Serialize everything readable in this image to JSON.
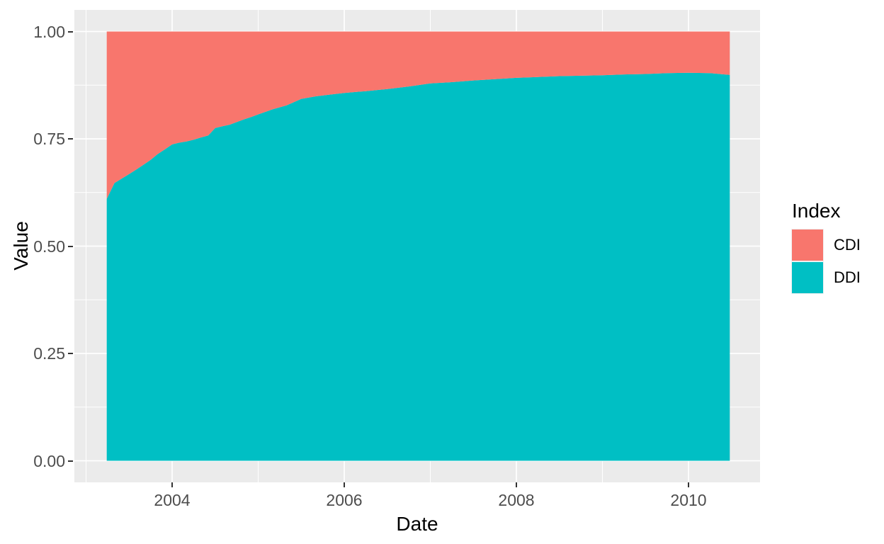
{
  "figure": {
    "x_axis": {
      "title": "Date",
      "ticks": [
        {
          "label": "2004",
          "value": 2004
        },
        {
          "label": "2006",
          "value": 2006
        },
        {
          "label": "2008",
          "value": 2008
        },
        {
          "label": "2010",
          "value": 2010
        }
      ],
      "minor": [
        2003,
        2005,
        2007,
        2009
      ]
    },
    "y_axis": {
      "title": "Value",
      "ticks": [
        {
          "label": "0.00",
          "value": 0.0
        },
        {
          "label": "0.25",
          "value": 0.25
        },
        {
          "label": "0.50",
          "value": 0.5
        },
        {
          "label": "0.75",
          "value": 0.75
        },
        {
          "label": "1.00",
          "value": 1.0
        }
      ],
      "minor": [
        0.125,
        0.375,
        0.625,
        0.875
      ]
    },
    "legend": {
      "title": "Index",
      "entries": [
        {
          "label": "CDI",
          "color": "#F8766D"
        },
        {
          "label": "DDI",
          "color": "#00BFC4"
        }
      ]
    },
    "colors": {
      "panel": "#EBEBEB",
      "grid": "#FFFFFF",
      "tick_text": "#4D4D4D",
      "tick_mark": "#333333",
      "title_text": "#000000",
      "cdi": "#F8766D",
      "ddi": "#00BFC4"
    }
  },
  "chart_data": {
    "type": "area",
    "stacked": true,
    "title": "",
    "xlabel": "Date",
    "ylabel": "Value",
    "xlim": [
      2002.89,
      2010.84
    ],
    "ylim": [
      0,
      1
    ],
    "x_data_range": [
      2003.24,
      2010.48
    ],
    "grid": true,
    "legend_position": "right",
    "x": [
      2003.24,
      2003.33,
      2003.42,
      2003.5,
      2003.58,
      2003.67,
      2003.75,
      2003.83,
      2003.92,
      2004.0,
      2004.08,
      2004.17,
      2004.25,
      2004.33,
      2004.42,
      2004.5,
      2004.58,
      2004.67,
      2004.75,
      2004.83,
      2004.92,
      2005.0,
      2005.17,
      2005.33,
      2005.5,
      2005.67,
      2005.83,
      2006.0,
      2006.25,
      2006.5,
      2006.75,
      2007.0,
      2007.25,
      2007.5,
      2007.75,
      2008.0,
      2008.25,
      2008.5,
      2008.75,
      2009.0,
      2009.25,
      2009.5,
      2009.75,
      2010.0,
      2010.25,
      2010.48
    ],
    "series": [
      {
        "name": "CDI",
        "color": "#F8766D",
        "values": [
          0.39,
          0.353,
          0.342,
          0.332,
          0.322,
          0.31,
          0.299,
          0.286,
          0.274,
          0.263,
          0.259,
          0.256,
          0.252,
          0.247,
          0.242,
          0.225,
          0.221,
          0.217,
          0.211,
          0.205,
          0.199,
          0.193,
          0.181,
          0.172,
          0.157,
          0.151,
          0.147,
          0.143,
          0.139,
          0.134,
          0.128,
          0.121,
          0.118,
          0.114,
          0.111,
          0.108,
          0.106,
          0.104,
          0.103,
          0.102,
          0.1,
          0.099,
          0.097,
          0.096,
          0.097,
          0.101
        ]
      },
      {
        "name": "DDI",
        "color": "#00BFC4",
        "values": [
          0.61,
          0.647,
          0.658,
          0.668,
          0.678,
          0.69,
          0.701,
          0.714,
          0.726,
          0.737,
          0.741,
          0.744,
          0.748,
          0.753,
          0.758,
          0.775,
          0.779,
          0.783,
          0.789,
          0.795,
          0.801,
          0.807,
          0.819,
          0.828,
          0.843,
          0.849,
          0.853,
          0.857,
          0.861,
          0.866,
          0.872,
          0.879,
          0.882,
          0.886,
          0.889,
          0.892,
          0.894,
          0.896,
          0.897,
          0.898,
          0.9,
          0.901,
          0.903,
          0.904,
          0.903,
          0.899
        ]
      }
    ],
    "stack_total": 1.0
  }
}
